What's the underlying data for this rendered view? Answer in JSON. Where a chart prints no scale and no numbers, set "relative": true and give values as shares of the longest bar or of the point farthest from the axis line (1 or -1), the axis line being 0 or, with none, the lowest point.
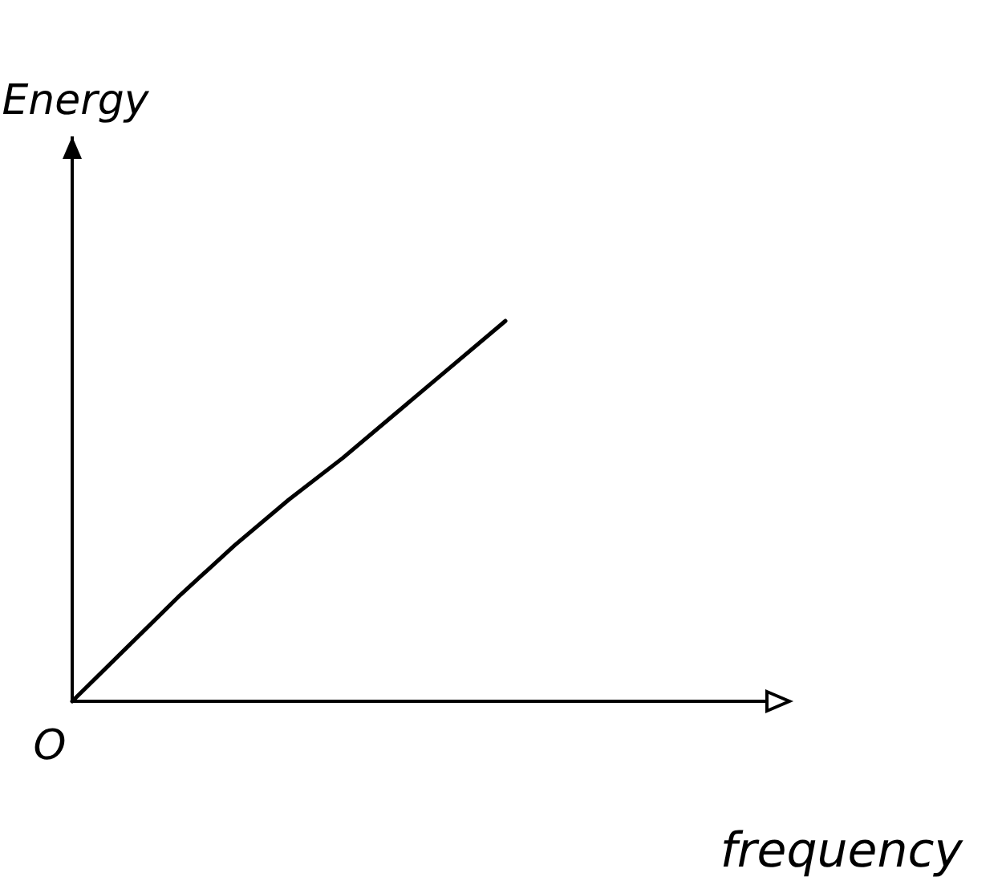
{
  "chart_data": {
    "type": "line",
    "relative": true,
    "xlabel": "frequency",
    "ylabel": "Energy",
    "annotations": [
      "O"
    ],
    "categories": [
      null,
      null,
      null,
      null,
      null,
      null,
      null,
      null,
      null,
      null,
      null,
      null,
      null
    ],
    "series": [
      {
        "color": "#000000",
        "values": [
          0,
          0.14,
          0.28,
          0.41,
          0.53,
          0.64,
          0.76,
          0.88,
          1,
          null,
          null,
          null,
          null
        ]
      }
    ],
    "marker": "none",
    "line_style": "solid"
  }
}
